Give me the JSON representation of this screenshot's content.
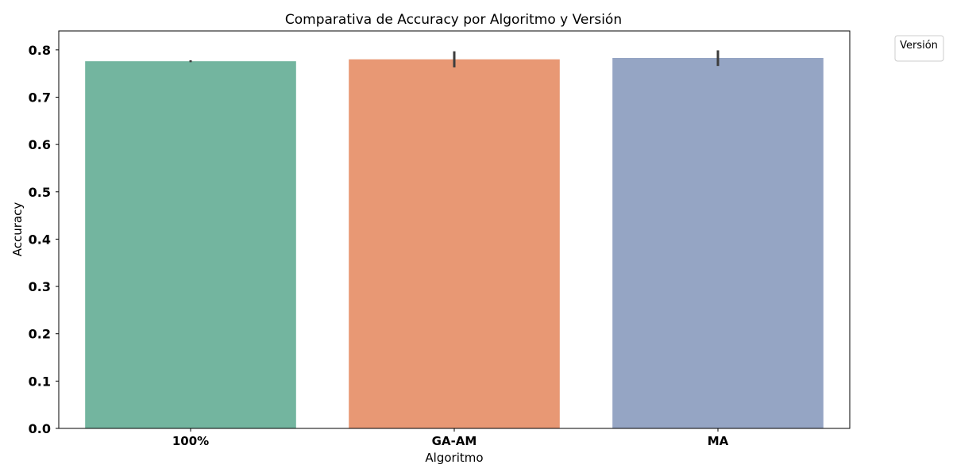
{
  "chart_data": {
    "type": "bar",
    "title": "Comparativa de Accuracy por Algoritmo y Versión",
    "xlabel": "Algoritmo",
    "ylabel": "Accuracy",
    "categories": [
      "100%",
      "GA-AM",
      "MA"
    ],
    "values": [
      0.776,
      0.78,
      0.783
    ],
    "error_low": [
      0.774,
      0.763,
      0.766
    ],
    "error_high": [
      0.778,
      0.797,
      0.799
    ],
    "colors": [
      "#73b59f",
      "#e89874",
      "#95a5c4"
    ],
    "ylim": [
      0,
      0.84
    ],
    "yticks": [
      0.0,
      0.1,
      0.2,
      0.3,
      0.4,
      0.5,
      0.6,
      0.7,
      0.8
    ],
    "ytick_labels": [
      "0.0",
      "0.1",
      "0.2",
      "0.3",
      "0.4",
      "0.5",
      "0.6",
      "0.7",
      "0.8"
    ],
    "legend": {
      "title": "Versión",
      "placement": "outside-top-right",
      "entries": []
    },
    "grid": false,
    "errorbar_color": "#3d3d3d"
  }
}
